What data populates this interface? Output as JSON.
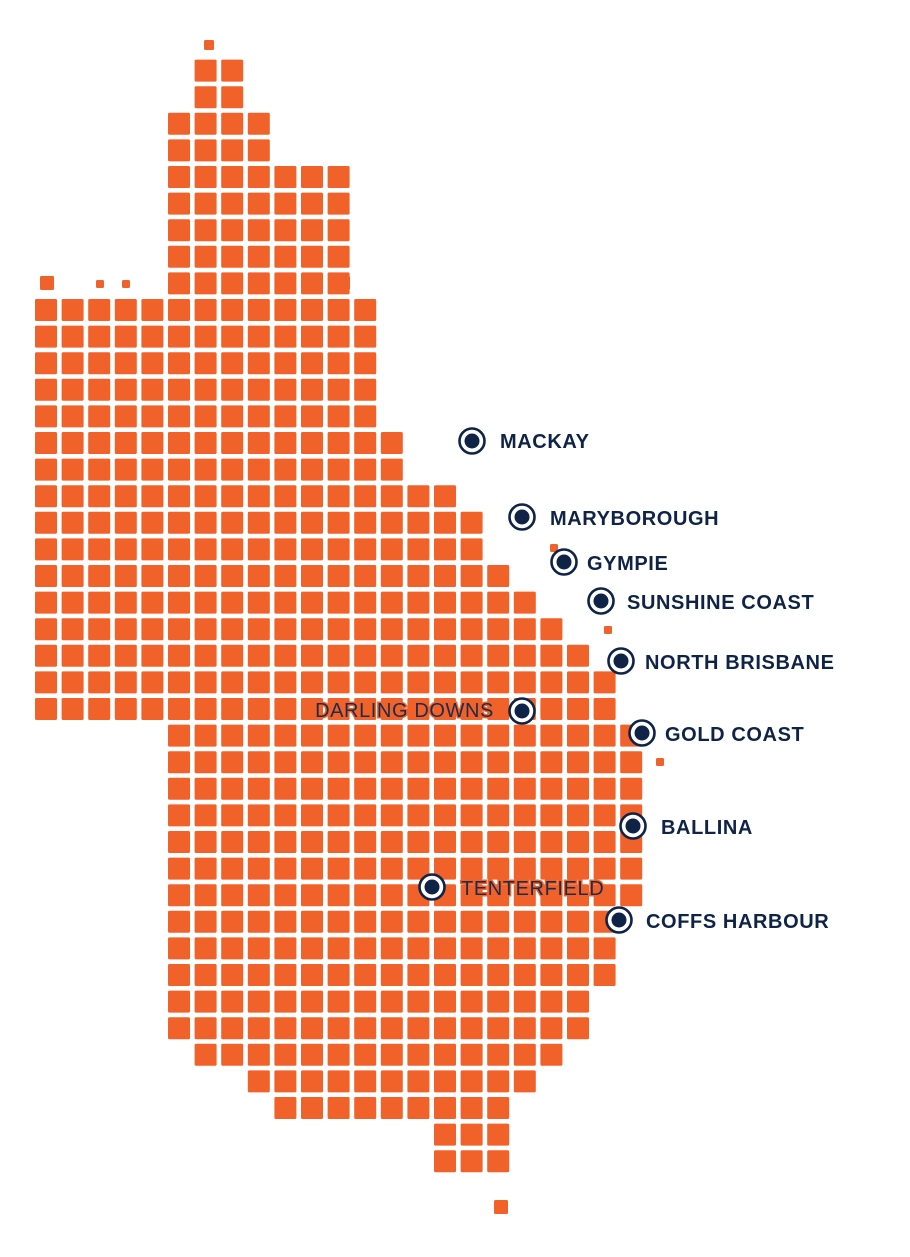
{
  "map": {
    "tile_color": "#f1612a",
    "marker_color": "#0f2346",
    "label_color": "#0f2346"
  },
  "locations": [
    {
      "id": "mackay",
      "label": "MACKAY"
    },
    {
      "id": "maryborough",
      "label": "MARYBOROUGH"
    },
    {
      "id": "gympie",
      "label": "GYMPIE"
    },
    {
      "id": "sunshine-coast",
      "label": "SUNSHINE COAST"
    },
    {
      "id": "north-brisbane",
      "label": "NORTH BRISBANE"
    },
    {
      "id": "darling-downs",
      "label": "DARLING DOWNS"
    },
    {
      "id": "gold-coast",
      "label": "GOLD COAST"
    },
    {
      "id": "ballina",
      "label": "BALLINA"
    },
    {
      "id": "tenterfield",
      "label": "TENTERFIELD"
    },
    {
      "id": "coffs-harbour",
      "label": "COFFS HARBOUR"
    }
  ]
}
